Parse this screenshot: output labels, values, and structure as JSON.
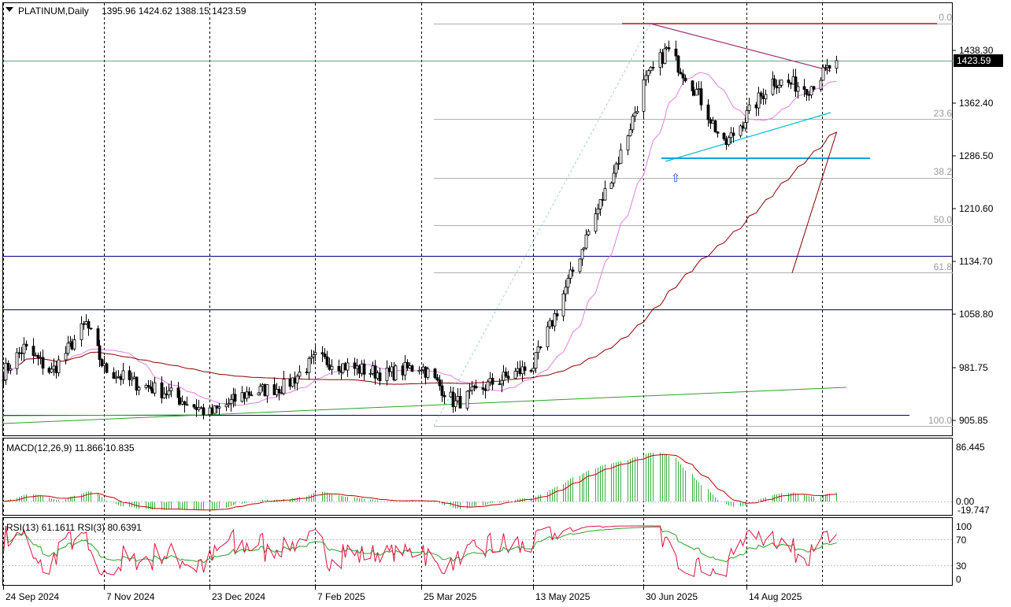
{
  "header": {
    "symbol": "PLATINUM,Daily",
    "ohlc": "1395.96 1424.62 1388.15 1423.59",
    "menu_icon": "triangle-down-icon"
  },
  "current_price": "1423.59",
  "fib_levels": [
    "0.0",
    "23.6",
    "38.2",
    "50.0",
    "61.8",
    "100.0"
  ],
  "macd": {
    "label": "MACD(12,26,9) 11.866 10.835",
    "ticks": [
      "86.445",
      "0.00",
      "-19.747"
    ]
  },
  "rsi": {
    "label": "RSI(13) 61.1611  RSI(3) 80.6391",
    "ticks": [
      "100",
      "70",
      "30",
      "0"
    ]
  },
  "colors": {
    "candle": "#000000",
    "grid": "#000000",
    "ma_pink": "#e080e0",
    "ma_maroon": "#8b0000",
    "trend_green": "#2ca02c",
    "trend_cyan": "#00bcd4",
    "resistance_purple": "#a0307a",
    "hline_navy": "#000080",
    "hline_red": "#b22222",
    "macd_hist": "#3cb043",
    "rsi_fast": "#dc143c"
  },
  "chart_data": {
    "type": "candlestick",
    "title": "PLATINUM,Daily",
    "y_ticks": [
      "1438.30",
      "1362.40",
      "1286.50",
      "1210.60",
      "1134.70",
      "1058.80",
      "981.75",
      "905.85"
    ],
    "x_ticks": [
      "24 Sep 2024",
      "7 Nov 2024",
      "23 Dec 2024",
      "7 Feb 2025",
      "25 Mar 2025",
      "13 May 2025",
      "30 Jun 2025",
      "14 Aug 2025"
    ],
    "ylim": [
      880,
      1480
    ],
    "last_close": 1423.59,
    "anchors": [
      [
        "24 Sep 2024",
        975
      ],
      [
        "3 Oct 2024",
        1010
      ],
      [
        "15 Oct 2024",
        975
      ],
      [
        "30 Oct 2024",
        1045
      ],
      [
        "7 Nov 2024",
        980
      ],
      [
        "20 Nov 2024",
        960
      ],
      [
        "5 Dec 2024",
        945
      ],
      [
        "23 Dec 2024",
        915
      ],
      [
        "8 Jan 2025",
        945
      ],
      [
        "25 Jan 2025",
        955
      ],
      [
        "7 Feb 2025",
        995
      ],
      [
        "25 Feb 2025",
        980
      ],
      [
        "10 Mar 2025",
        972
      ],
      [
        "25 Mar 2025",
        985
      ],
      [
        "9 Apr 2025",
        930
      ],
      [
        "25 Apr 2025",
        960
      ],
      [
        "13 May 2025",
        985
      ],
      [
        "25 May 2025",
        1080
      ],
      [
        "10 Jun 2025",
        1210
      ],
      [
        "20 Jun 2025",
        1290
      ],
      [
        "30 Jun 2025",
        1390
      ],
      [
        "10 Jul 2025",
        1440
      ],
      [
        "23 Jul 2025",
        1380
      ],
      [
        "4 Aug 2025",
        1300
      ],
      [
        "14 Aug 2025",
        1345
      ],
      [
        "25 Aug 2025",
        1395
      ],
      [
        "10 Sep 2025",
        1385
      ],
      [
        "22 Sep 2025",
        1423.59
      ]
    ]
  }
}
